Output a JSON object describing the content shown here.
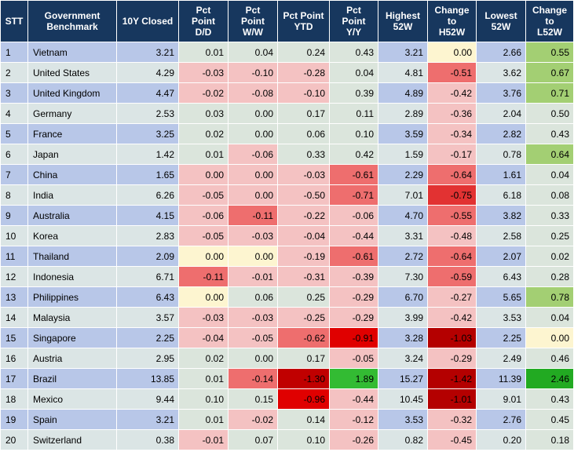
{
  "headers": [
    "STT",
    "Government\nBenchmark",
    "10Y Closed",
    "Pct\nPoint\nD/D",
    "Pct\nPoint\nW/W",
    "Pct Point\nYTD",
    "Pct\nPoint\nY/Y",
    "Highest\n52W",
    "Change\nto\nH52W",
    "Lowest\n52W",
    "Change\nto\nL52W"
  ],
  "rows": [
    {
      "stt": "1",
      "country": "Vietnam",
      "closed": "3.21",
      "dd": "0.01",
      "ww": "0.04",
      "ytd": "0.24",
      "yy": "0.43",
      "high": "3.21",
      "chh": "0.00",
      "low": "2.66",
      "chl": "0.55",
      "colors": {
        "dd": "#dbe5dc",
        "ww": "#dbe5dc",
        "ytd": "#dbe5dc",
        "yy": "#dbe5dc",
        "chh": "#fdf5d0",
        "chl": "#a3cf73"
      }
    },
    {
      "stt": "2",
      "country": "United States",
      "closed": "4.29",
      "dd": "-0.03",
      "ww": "-0.10",
      "ytd": "-0.28",
      "yy": "0.04",
      "high": "4.81",
      "chh": "-0.51",
      "low": "3.62",
      "chl": "0.67",
      "colors": {
        "dd": "#f4c2c2",
        "ww": "#f4c2c2",
        "ytd": "#f4c2c2",
        "yy": "#dbe5dc",
        "chh": "#ee6e6e",
        "chl": "#a3cf73"
      }
    },
    {
      "stt": "3",
      "country": "United Kingdom",
      "closed": "4.47",
      "dd": "-0.02",
      "ww": "-0.08",
      "ytd": "-0.10",
      "yy": "0.39",
      "high": "4.89",
      "chh": "-0.42",
      "low": "3.76",
      "chl": "0.71",
      "colors": {
        "dd": "#f4c2c2",
        "ww": "#f4c2c2",
        "ytd": "#f4c2c2",
        "yy": "#dbe5dc",
        "chh": "#f4c2c2",
        "chl": "#a3cf73"
      }
    },
    {
      "stt": "4",
      "country": "Germany",
      "closed": "2.53",
      "dd": "0.03",
      "ww": "0.00",
      "ytd": "0.17",
      "yy": "0.11",
      "high": "2.89",
      "chh": "-0.36",
      "low": "2.04",
      "chl": "0.50",
      "colors": {
        "dd": "#dbe5dc",
        "ww": "#dbe5dc",
        "ytd": "#dbe5dc",
        "yy": "#dbe5dc",
        "chh": "#f4c2c2",
        "chl": "#dbe5dc"
      }
    },
    {
      "stt": "5",
      "country": "France",
      "closed": "3.25",
      "dd": "0.02",
      "ww": "0.00",
      "ytd": "0.06",
      "yy": "0.10",
      "high": "3.59",
      "chh": "-0.34",
      "low": "2.82",
      "chl": "0.43",
      "colors": {
        "dd": "#dbe5dc",
        "ww": "#dbe5dc",
        "ytd": "#dbe5dc",
        "yy": "#dbe5dc",
        "chh": "#f4c2c2",
        "chl": "#dbe5dc"
      }
    },
    {
      "stt": "6",
      "country": "Japan",
      "closed": "1.42",
      "dd": "0.01",
      "ww": "-0.06",
      "ytd": "0.33",
      "yy": "0.42",
      "high": "1.59",
      "chh": "-0.17",
      "low": "0.78",
      "chl": "0.64",
      "colors": {
        "dd": "#dbe5dc",
        "ww": "#f4c2c2",
        "ytd": "#dbe5dc",
        "yy": "#dbe5dc",
        "chh": "#f4c2c2",
        "chl": "#a3cf73"
      }
    },
    {
      "stt": "7",
      "country": "China",
      "closed": "1.65",
      "dd": "0.00",
      "ww": "0.00",
      "ytd": "-0.03",
      "yy": "-0.61",
      "high": "2.29",
      "chh": "-0.64",
      "low": "1.61",
      "chl": "0.04",
      "colors": {
        "dd": "#f4c2c2",
        "ww": "#f4c2c2",
        "ytd": "#f4c2c2",
        "yy": "#ee6e6e",
        "chh": "#ee6e6e",
        "chl": "#dbe5dc"
      }
    },
    {
      "stt": "8",
      "country": "India",
      "closed": "6.26",
      "dd": "-0.05",
      "ww": "0.00",
      "ytd": "-0.50",
      "yy": "-0.71",
      "high": "7.01",
      "chh": "-0.75",
      "low": "6.18",
      "chl": "0.08",
      "colors": {
        "dd": "#f4c2c2",
        "ww": "#f4c2c2",
        "ytd": "#f4c2c2",
        "yy": "#ee6e6e",
        "chh": "#e23232",
        "chl": "#dbe5dc"
      }
    },
    {
      "stt": "9",
      "country": "Australia",
      "closed": "4.15",
      "dd": "-0.06",
      "ww": "-0.11",
      "ytd": "-0.22",
      "yy": "-0.06",
      "high": "4.70",
      "chh": "-0.55",
      "low": "3.82",
      "chl": "0.33",
      "colors": {
        "dd": "#f4c2c2",
        "ww": "#ee6e6e",
        "ytd": "#f4c2c2",
        "yy": "#f4c2c2",
        "chh": "#ee6e6e",
        "chl": "#dbe5dc"
      }
    },
    {
      "stt": "10",
      "country": "Korea",
      "closed": "2.83",
      "dd": "-0.05",
      "ww": "-0.03",
      "ytd": "-0.04",
      "yy": "-0.44",
      "high": "3.31",
      "chh": "-0.48",
      "low": "2.58",
      "chl": "0.25",
      "colors": {
        "dd": "#f4c2c2",
        "ww": "#f4c2c2",
        "ytd": "#f4c2c2",
        "yy": "#f4c2c2",
        "chh": "#f4c2c2",
        "chl": "#dbe5dc"
      }
    },
    {
      "stt": "11",
      "country": "Thailand",
      "closed": "2.09",
      "dd": "0.00",
      "ww": "0.00",
      "ytd": "-0.19",
      "yy": "-0.61",
      "high": "2.72",
      "chh": "-0.64",
      "low": "2.07",
      "chl": "0.02",
      "colors": {
        "dd": "#fdf5d0",
        "ww": "#fdf5d0",
        "ytd": "#f4c2c2",
        "yy": "#ee6e6e",
        "chh": "#ee6e6e",
        "chl": "#dbe5dc"
      }
    },
    {
      "stt": "12",
      "country": "Indonesia",
      "closed": "6.71",
      "dd": "-0.11",
      "ww": "-0.01",
      "ytd": "-0.31",
      "yy": "-0.39",
      "high": "7.30",
      "chh": "-0.59",
      "low": "6.43",
      "chl": "0.28",
      "colors": {
        "dd": "#ee6e6e",
        "ww": "#f4c2c2",
        "ytd": "#f4c2c2",
        "yy": "#f4c2c2",
        "chh": "#ee6e6e",
        "chl": "#dbe5dc"
      }
    },
    {
      "stt": "13",
      "country": "Philippines",
      "closed": "6.43",
      "dd": "0.00",
      "ww": "0.06",
      "ytd": "0.25",
      "yy": "-0.29",
      "high": "6.70",
      "chh": "-0.27",
      "low": "5.65",
      "chl": "0.78",
      "colors": {
        "dd": "#fdf5d0",
        "ww": "#dbe5dc",
        "ytd": "#dbe5dc",
        "yy": "#f4c2c2",
        "chh": "#f4c2c2",
        "chl": "#a3cf73"
      }
    },
    {
      "stt": "14",
      "country": "Malaysia",
      "closed": "3.57",
      "dd": "-0.03",
      "ww": "-0.03",
      "ytd": "-0.25",
      "yy": "-0.29",
      "high": "3.99",
      "chh": "-0.42",
      "low": "3.53",
      "chl": "0.04",
      "colors": {
        "dd": "#f4c2c2",
        "ww": "#f4c2c2",
        "ytd": "#f4c2c2",
        "yy": "#f4c2c2",
        "chh": "#f4c2c2",
        "chl": "#dbe5dc"
      }
    },
    {
      "stt": "15",
      "country": "Singapore",
      "closed": "2.25",
      "dd": "-0.04",
      "ww": "-0.05",
      "ytd": "-0.62",
      "yy": "-0.91",
      "high": "3.28",
      "chh": "-1.03",
      "low": "2.25",
      "chl": "0.00",
      "colors": {
        "dd": "#f4c2c2",
        "ww": "#f4c2c2",
        "ytd": "#ee6e6e",
        "yy": "#e00000",
        "chh": "#b40000",
        "chl": "#fdf5d0"
      }
    },
    {
      "stt": "16",
      "country": "Austria",
      "closed": "2.95",
      "dd": "0.02",
      "ww": "0.00",
      "ytd": "0.17",
      "yy": "-0.05",
      "high": "3.24",
      "chh": "-0.29",
      "low": "2.49",
      "chl": "0.46",
      "colors": {
        "dd": "#dbe5dc",
        "ww": "#dbe5dc",
        "ytd": "#dbe5dc",
        "yy": "#f4c2c2",
        "chh": "#f4c2c2",
        "chl": "#dbe5dc"
      }
    },
    {
      "stt": "17",
      "country": "Brazil",
      "closed": "13.85",
      "dd": "0.01",
      "ww": "-0.14",
      "ytd": "-1.30",
      "yy": "1.89",
      "high": "15.27",
      "chh": "-1.42",
      "low": "11.39",
      "chl": "2.46",
      "colors": {
        "dd": "#dbe5dc",
        "ww": "#ee6e6e",
        "ytd": "#c00000",
        "yy": "#33bb33",
        "chh": "#b40000",
        "chl": "#22aa22"
      }
    },
    {
      "stt": "18",
      "country": "Mexico",
      "closed": "9.44",
      "dd": "0.10",
      "ww": "0.15",
      "ytd": "-0.96",
      "yy": "-0.44",
      "high": "10.45",
      "chh": "-1.01",
      "low": "9.01",
      "chl": "0.43",
      "colors": {
        "dd": "#dbe5dc",
        "ww": "#dbe5dc",
        "ytd": "#e00000",
        "yy": "#f4c2c2",
        "chh": "#b40000",
        "chl": "#dbe5dc"
      }
    },
    {
      "stt": "19",
      "country": "Spain",
      "closed": "3.21",
      "dd": "0.01",
      "ww": "-0.02",
      "ytd": "0.14",
      "yy": "-0.12",
      "high": "3.53",
      "chh": "-0.32",
      "low": "2.76",
      "chl": "0.45",
      "colors": {
        "dd": "#dbe5dc",
        "ww": "#f4c2c2",
        "ytd": "#dbe5dc",
        "yy": "#f4c2c2",
        "chh": "#f4c2c2",
        "chl": "#dbe5dc"
      }
    },
    {
      "stt": "20",
      "country": "Switzerland",
      "closed": "0.38",
      "dd": "-0.01",
      "ww": "0.07",
      "ytd": "0.10",
      "yy": "-0.26",
      "high": "0.82",
      "chh": "-0.45",
      "low": "0.20",
      "chl": "0.18",
      "colors": {
        "dd": "#f4c2c2",
        "ww": "#dbe5dc",
        "ytd": "#dbe5dc",
        "yy": "#f4c2c2",
        "chh": "#f4c2c2",
        "chl": "#dbe5dc"
      }
    }
  ],
  "band_colors": {
    "odd": "#b8c7e8",
    "even": "#dbe5e5",
    "header": "#17375e"
  }
}
